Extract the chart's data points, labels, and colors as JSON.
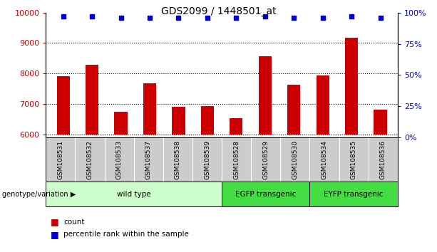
{
  "title": "GDS2099 / 1448501_at",
  "samples": [
    "GSM108531",
    "GSM108532",
    "GSM108533",
    "GSM108537",
    "GSM108538",
    "GSM108539",
    "GSM108528",
    "GSM108529",
    "GSM108530",
    "GSM108534",
    "GSM108535",
    "GSM108536"
  ],
  "counts": [
    7900,
    8280,
    6750,
    7680,
    6900,
    6930,
    6520,
    8560,
    7630,
    7930,
    9180,
    6800
  ],
  "percentiles": [
    97,
    97,
    96,
    96,
    96,
    96,
    96,
    97,
    96,
    96,
    97,
    96
  ],
  "ylim_left": [
    5900,
    10000
  ],
  "ylim_right": [
    0,
    100
  ],
  "yticks_left": [
    6000,
    7000,
    8000,
    9000,
    10000
  ],
  "yticks_right": [
    0,
    25,
    50,
    75,
    100
  ],
  "groups": [
    {
      "label": "wild type",
      "start": 0,
      "end": 6,
      "color": "#ccffcc"
    },
    {
      "label": "EGFP transgenic",
      "start": 6,
      "end": 9,
      "color": "#66ee55"
    },
    {
      "label": "EYFP transgenic",
      "start": 9,
      "end": 12,
      "color": "#66ee55"
    }
  ],
  "bar_color": "#cc0000",
  "dot_color": "#0000cc",
  "left_tick_color": "#cc0000",
  "right_tick_color": "#0000cc",
  "xlabel_group": "genotype/variation",
  "legend_count_label": "count",
  "legend_pct_label": "percentile rank within the sample",
  "sample_bg_color": "#cccccc",
  "wild_type_color": "#ccffcc",
  "transgenic_color": "#44dd44",
  "bar_width": 0.45
}
